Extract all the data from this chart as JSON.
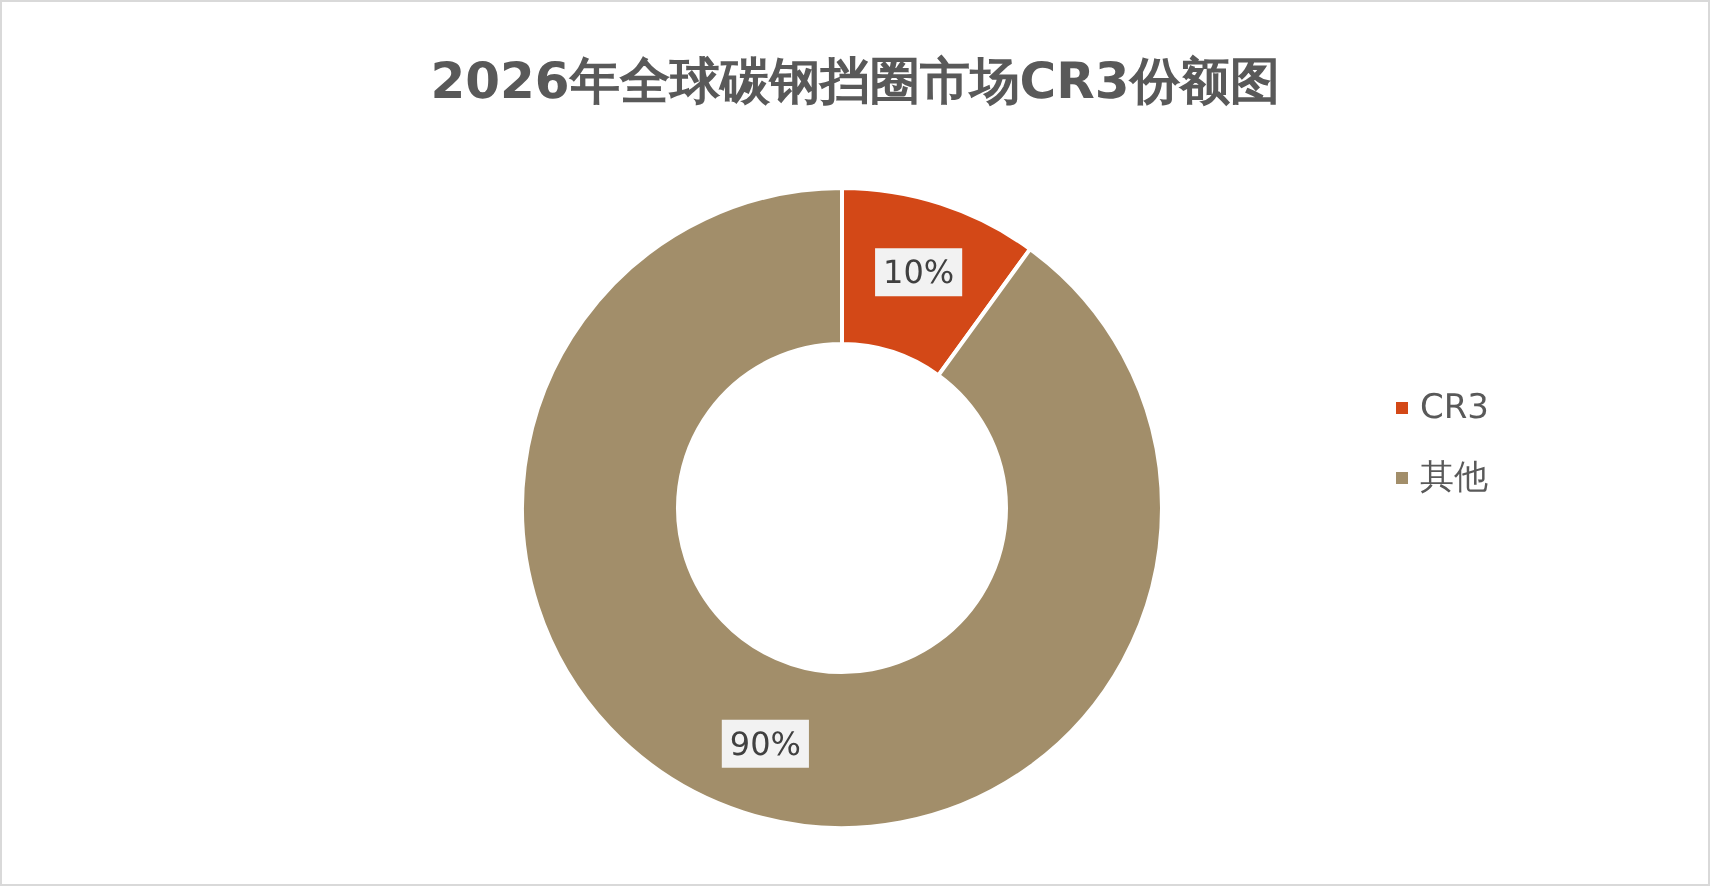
{
  "chart_data": {
    "type": "donut",
    "title": "2026年全球碳钢挡圈市场CR3份额图",
    "categories": [
      "CR3",
      "其他"
    ],
    "values": [
      10,
      90
    ],
    "colors": [
      "#d34817",
      "#a28e6a"
    ],
    "value_labels": [
      "10%",
      "90%"
    ],
    "legend": "right"
  }
}
